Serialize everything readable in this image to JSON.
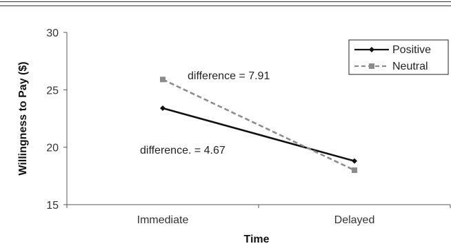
{
  "chart_data": {
    "type": "line",
    "xlabel": "Time",
    "ylabel": "Willingness to Pay ($)",
    "categories": [
      "Immediate",
      "Delayed"
    ],
    "ylim": [
      15,
      30
    ],
    "yticks": [
      15,
      20,
      25,
      30
    ],
    "grid": false,
    "legend_position": "top-right",
    "series": [
      {
        "name": "Positive",
        "values": [
          23.4,
          18.8
        ],
        "color": "#111111",
        "style": "solid",
        "marker": "diamond"
      },
      {
        "name": "Neutral",
        "values": [
          25.9,
          18.0
        ],
        "color": "#8c8c8c",
        "style": "dashed",
        "marker": "square"
      }
    ],
    "annotations": [
      {
        "text": "difference = 7.91"
      },
      {
        "text": "difference. = 4.67"
      }
    ]
  }
}
